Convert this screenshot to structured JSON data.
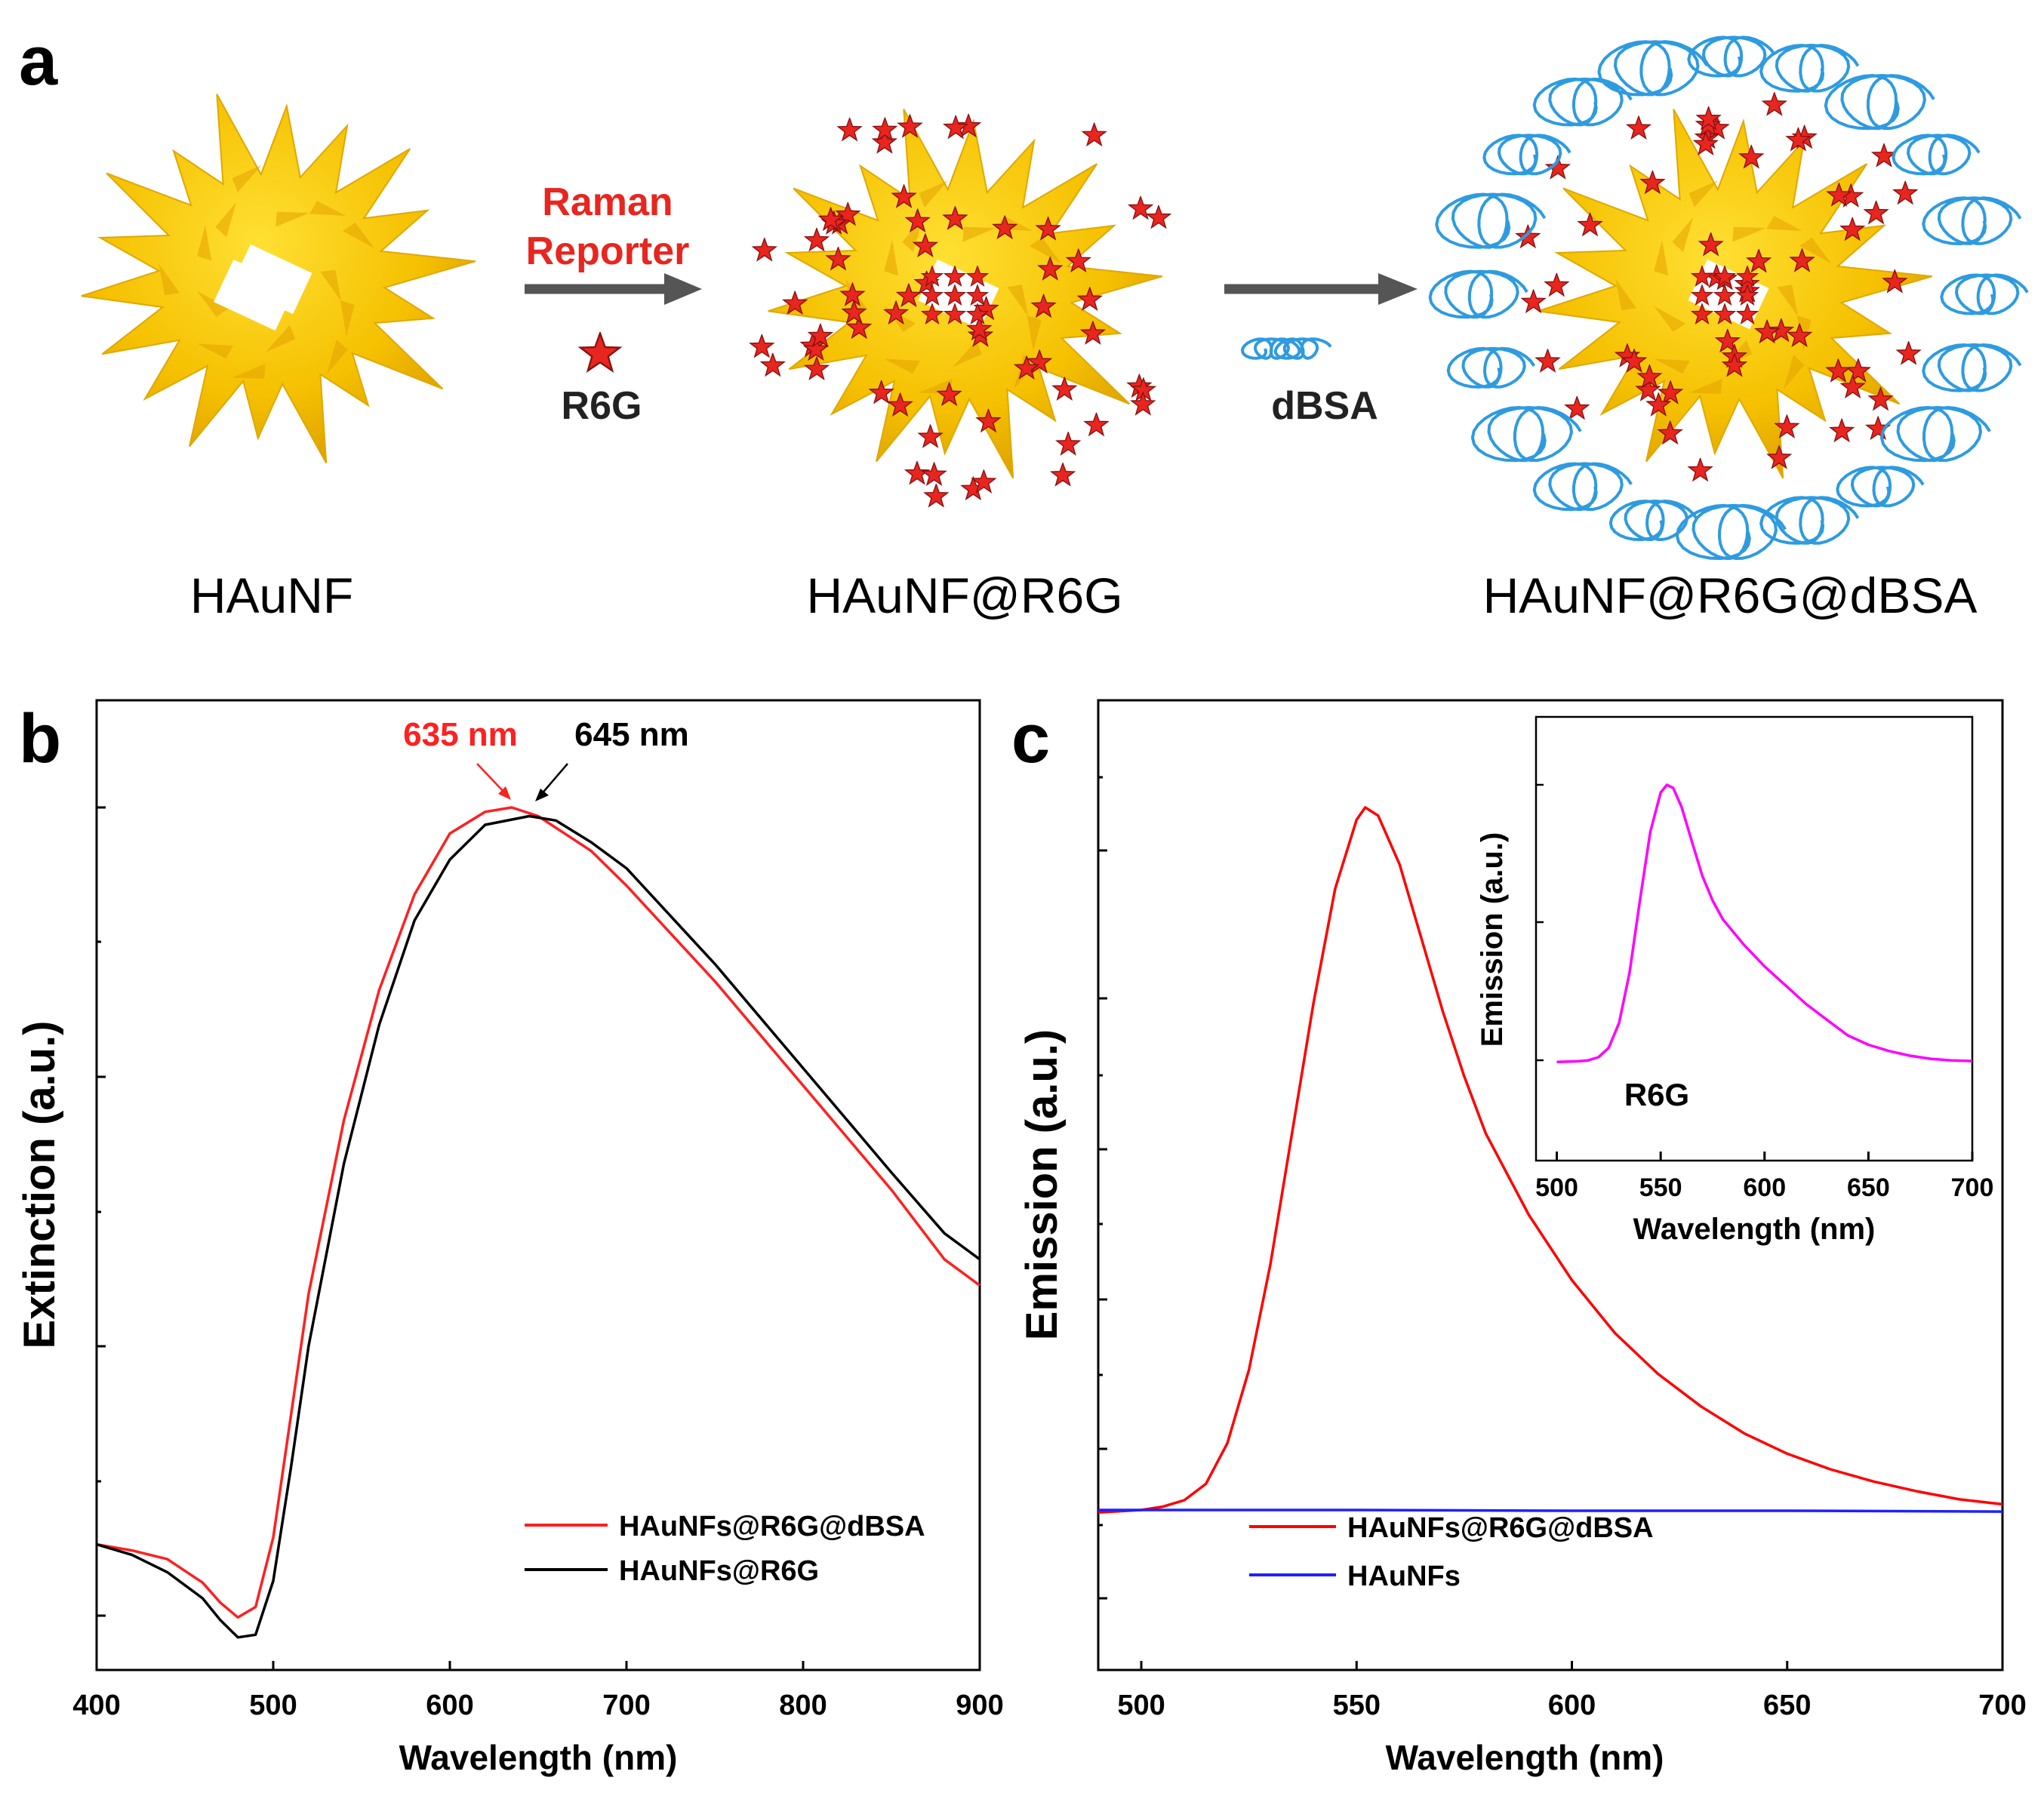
{
  "panel_a": {
    "letter": "a",
    "label_1": "HAuNF",
    "label_2": "HAuNF@R6G",
    "label_3": "HAuNF@R6G@dBSA",
    "arrow1_line1": "Raman",
    "arrow1_line2": "Reporter",
    "reporter_name": "R6G",
    "arrow2_label": "dBSA",
    "colors": {
      "gold": "#f7c400",
      "gold_dark": "#d99a00",
      "star": "#e8251f",
      "protein": "#2e9be0",
      "arrow": "#555555"
    }
  },
  "panel_b": {
    "letter": "b"
  },
  "panel_c": {
    "letter": "c"
  },
  "chart_data": [
    {
      "id": "b",
      "type": "line",
      "xlabel": "Wavelength (nm)",
      "ylabel": "Extinction (a.u.)",
      "xlim": [
        400,
        900
      ],
      "ylim": [
        0,
        1
      ],
      "x_ticks": [
        400,
        500,
        600,
        700,
        800,
        900
      ],
      "y_tick_labels_shown": false,
      "annotations": [
        {
          "text": "635 nm",
          "x": 635,
          "y": 1.0,
          "color": "#ff2020"
        },
        {
          "text": "645 nm",
          "x": 645,
          "y": 0.99,
          "color": "#000000"
        }
      ],
      "legend_position": "lower-right",
      "series": [
        {
          "name": "HAuNFs@R6G@dBSA",
          "color": "#ff2020",
          "x": [
            400,
            420,
            440,
            460,
            470,
            480,
            490,
            500,
            510,
            520,
            540,
            560,
            580,
            600,
            620,
            635,
            650,
            680,
            700,
            750,
            800,
            850,
            880,
            900
          ],
          "y": [
            0.152,
            0.145,
            0.135,
            0.108,
            0.085,
            0.068,
            0.08,
            0.16,
            0.3,
            0.44,
            0.64,
            0.79,
            0.9,
            0.97,
            0.995,
            1.0,
            0.99,
            0.95,
            0.91,
            0.8,
            0.68,
            0.56,
            0.48,
            0.45
          ]
        },
        {
          "name": "HAuNFs@R6G",
          "color": "#000000",
          "x": [
            400,
            420,
            440,
            460,
            470,
            480,
            490,
            500,
            510,
            520,
            540,
            560,
            580,
            600,
            620,
            645,
            660,
            680,
            700,
            750,
            800,
            850,
            880,
            900
          ],
          "y": [
            0.152,
            0.14,
            0.12,
            0.09,
            0.065,
            0.045,
            0.048,
            0.11,
            0.24,
            0.38,
            0.59,
            0.75,
            0.87,
            0.94,
            0.98,
            0.99,
            0.985,
            0.96,
            0.93,
            0.82,
            0.7,
            0.58,
            0.51,
            0.48
          ]
        }
      ]
    },
    {
      "id": "c",
      "type": "line",
      "xlabel": "Wavelength (nm)",
      "ylabel": "Emission (a.u.)",
      "xlim": [
        490,
        700
      ],
      "ylim": [
        0,
        1
      ],
      "x_ticks": [
        500,
        550,
        600,
        650,
        700
      ],
      "y_tick_labels_shown": false,
      "legend_position": "lower-center",
      "series": [
        {
          "name": "HAuNFs@R6G@dBSA",
          "color": "#ff0000",
          "x": [
            490,
            500,
            505,
            510,
            515,
            520,
            525,
            530,
            535,
            540,
            545,
            550,
            552,
            555,
            560,
            565,
            570,
            575,
            580,
            590,
            600,
            610,
            620,
            630,
            640,
            650,
            660,
            670,
            680,
            690,
            700
          ],
          "y": [
            0.135,
            0.138,
            0.142,
            0.15,
            0.17,
            0.22,
            0.31,
            0.44,
            0.6,
            0.76,
            0.9,
            0.985,
            1.0,
            0.99,
            0.93,
            0.84,
            0.75,
            0.67,
            0.6,
            0.5,
            0.42,
            0.355,
            0.305,
            0.265,
            0.232,
            0.207,
            0.188,
            0.173,
            0.161,
            0.151,
            0.145
          ]
        },
        {
          "name": "HAuNFs",
          "color": "#2020ff",
          "x": [
            490,
            550,
            600,
            650,
            700
          ],
          "y": [
            0.138,
            0.138,
            0.137,
            0.137,
            0.136
          ]
        }
      ]
    },
    {
      "id": "c_inset",
      "type": "line",
      "xlabel": "Wavelength (nm)",
      "ylabel": "Emission (a.u.)",
      "xlim": [
        490,
        700
      ],
      "ylim": [
        0,
        1
      ],
      "x_ticks": [
        500,
        550,
        600,
        650,
        700
      ],
      "y_tick_labels_shown": false,
      "annotations": [
        {
          "text": "R6G",
          "x": 545,
          "y": 0.3,
          "color": "#000000"
        }
      ],
      "series": [
        {
          "name": "R6G",
          "color": "#ff00ff",
          "x": [
            500,
            510,
            515,
            520,
            525,
            530,
            535,
            540,
            545,
            550,
            553,
            556,
            560,
            565,
            570,
            575,
            580,
            590,
            600,
            610,
            620,
            630,
            640,
            650,
            660,
            670,
            680,
            690,
            700
          ],
          "y": [
            0.115,
            0.117,
            0.12,
            0.13,
            0.16,
            0.24,
            0.4,
            0.63,
            0.85,
            0.975,
            1.0,
            0.99,
            0.93,
            0.82,
            0.71,
            0.63,
            0.57,
            0.49,
            0.42,
            0.36,
            0.3,
            0.25,
            0.2,
            0.17,
            0.15,
            0.135,
            0.125,
            0.12,
            0.118
          ]
        }
      ]
    }
  ]
}
